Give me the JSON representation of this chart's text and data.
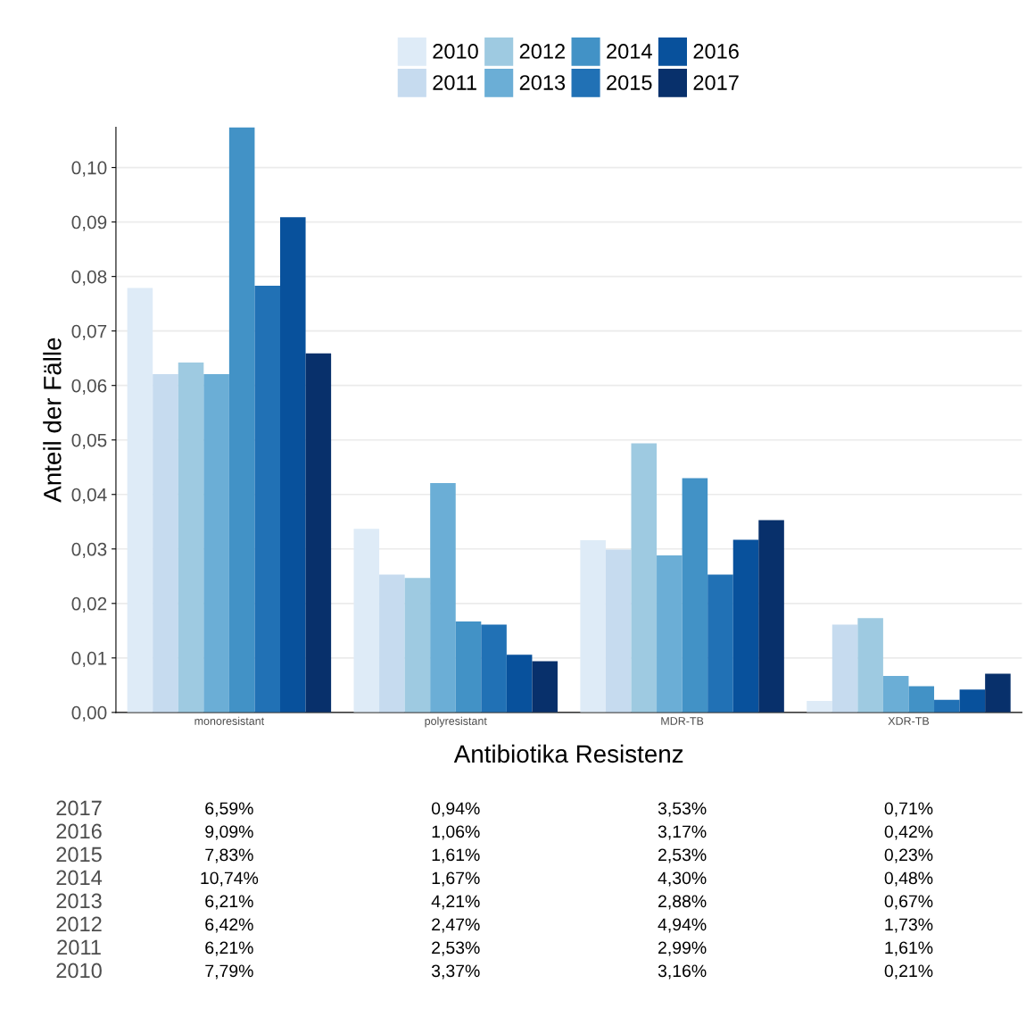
{
  "chart_data": {
    "type": "bar",
    "xlabel": "Antibiotika Resistenz",
    "ylabel": "Anteil der Fälle",
    "categories": [
      "monoresistant",
      "polyresistant",
      "MDR-TB",
      "XDR-TB"
    ],
    "series": [
      {
        "name": "2010",
        "color": "#deebf7",
        "values": [
          0.0779,
          0.0337,
          0.0316,
          0.0021
        ],
        "value_labels": [
          "7,79%",
          "3,37%",
          "3,16%",
          "0,21%"
        ]
      },
      {
        "name": "2011",
        "color": "#c6dbef",
        "values": [
          0.0621,
          0.0253,
          0.0299,
          0.0161
        ],
        "value_labels": [
          "6,21%",
          "2,53%",
          "2,99%",
          "1,61%"
        ]
      },
      {
        "name": "2012",
        "color": "#9ecae1",
        "values": [
          0.0642,
          0.0247,
          0.0494,
          0.0173
        ],
        "value_labels": [
          "6,42%",
          "2,47%",
          "4,94%",
          "1,73%"
        ]
      },
      {
        "name": "2013",
        "color": "#6baed6",
        "values": [
          0.0621,
          0.0421,
          0.0288,
          0.0067
        ],
        "value_labels": [
          "6,21%",
          "4,21%",
          "2,88%",
          "0,67%"
        ]
      },
      {
        "name": "2014",
        "color": "#4292c6",
        "values": [
          0.1074,
          0.0167,
          0.043,
          0.0048
        ],
        "value_labels": [
          "10,74%",
          "1,67%",
          "4,30%",
          "0,48%"
        ]
      },
      {
        "name": "2015",
        "color": "#2171b5",
        "values": [
          0.0783,
          0.0161,
          0.0253,
          0.0023
        ],
        "value_labels": [
          "7,83%",
          "1,61%",
          "2,53%",
          "0,23%"
        ]
      },
      {
        "name": "2016",
        "color": "#08519c",
        "values": [
          0.0909,
          0.0106,
          0.0317,
          0.0042
        ],
        "value_labels": [
          "9,09%",
          "1,06%",
          "3,17%",
          "0,42%"
        ]
      },
      {
        "name": "2017",
        "color": "#08306b",
        "values": [
          0.0659,
          0.0094,
          0.0353,
          0.0071
        ],
        "value_labels": [
          "6,59%",
          "0,94%",
          "3,53%",
          "0,71%"
        ]
      }
    ],
    "ylim": [
      0,
      0.1074
    ],
    "yticks": [
      {
        "value": 0,
        "label": "0,00"
      },
      {
        "value": 0.01,
        "label": "0,01"
      },
      {
        "value": 0.02,
        "label": "0,02"
      },
      {
        "value": 0.03,
        "label": "0,03"
      },
      {
        "value": 0.04,
        "label": "0,04"
      },
      {
        "value": 0.05,
        "label": "0,05"
      },
      {
        "value": 0.06,
        "label": "0,06"
      },
      {
        "value": 0.07,
        "label": "0,07"
      },
      {
        "value": 0.08,
        "label": "0,08"
      },
      {
        "value": 0.09,
        "label": "0,09"
      },
      {
        "value": 0.1,
        "label": "0,10"
      }
    ],
    "grid": "y",
    "legend": "top"
  }
}
